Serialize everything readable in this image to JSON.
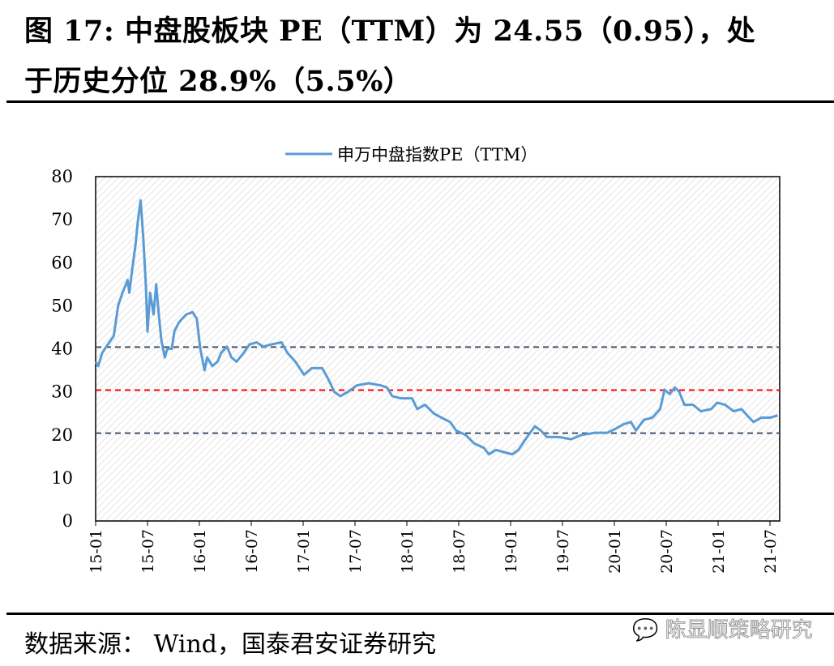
{
  "header": {
    "title_line1": "图 17:   中盘股板块 PE（TTM）为 24.55（0.95），处",
    "title_line2": "于历史分位 28.9%（5.5%）"
  },
  "footer": {
    "source": "数据来源： Wind，国泰君安证券研究",
    "watermark": "陈显顺策略研究"
  },
  "colors": {
    "line": "#5b9bd5",
    "ref_mid": "#ff0000",
    "ref_band": "#44546a"
  },
  "chart_data": {
    "type": "line",
    "title": "",
    "legend": [
      "申万中盘指数PE（TTM）"
    ],
    "legend_position": "top",
    "xlabel": "",
    "ylabel": "",
    "ylim": [
      0,
      80
    ],
    "yticks": [
      0,
      10,
      20,
      30,
      40,
      50,
      60,
      70,
      80
    ],
    "xticks": [
      "15-01",
      "15-07",
      "16-01",
      "16-07",
      "17-01",
      "17-07",
      "18-01",
      "18-07",
      "19-01",
      "19-07",
      "20-01",
      "20-07",
      "21-01",
      "21-07"
    ],
    "x_unit": "months since 2015-01",
    "reference_lines": [
      {
        "value": 40.4,
        "color": "#44546a"
      },
      {
        "value": 30.4,
        "color": "#ff0000"
      },
      {
        "value": 20.4,
        "color": "#44546a"
      }
    ],
    "series": [
      {
        "name": "申万中盘指数PE（TTM）",
        "points": [
          [
            0,
            37
          ],
          [
            0.3,
            36
          ],
          [
            0.75,
            39
          ],
          [
            1.4,
            41
          ],
          [
            2.1,
            43
          ],
          [
            2.6,
            50
          ],
          [
            3.1,
            53
          ],
          [
            3.7,
            56
          ],
          [
            3.9,
            53
          ],
          [
            4.2,
            58
          ],
          [
            4.6,
            64
          ],
          [
            4.9,
            70
          ],
          [
            5.2,
            74.5
          ],
          [
            5.5,
            66
          ],
          [
            5.8,
            55
          ],
          [
            6.0,
            44
          ],
          [
            6.3,
            53
          ],
          [
            6.7,
            48
          ],
          [
            7.0,
            55
          ],
          [
            7.3,
            48
          ],
          [
            7.6,
            42
          ],
          [
            8.0,
            38
          ],
          [
            8.3,
            40
          ],
          [
            8.8,
            40
          ],
          [
            9.1,
            44
          ],
          [
            9.6,
            46
          ],
          [
            10.0,
            47
          ],
          [
            10.5,
            48
          ],
          [
            11.2,
            48.5
          ],
          [
            11.7,
            47
          ],
          [
            12.1,
            40
          ],
          [
            12.6,
            35
          ],
          [
            12.9,
            38
          ],
          [
            13.5,
            36
          ],
          [
            14.1,
            37
          ],
          [
            14.5,
            39
          ],
          [
            15.2,
            40.5
          ],
          [
            15.7,
            38
          ],
          [
            16.3,
            37
          ],
          [
            17.1,
            39
          ],
          [
            17.8,
            41
          ],
          [
            18.6,
            41.5
          ],
          [
            19.4,
            40.5
          ],
          [
            20.3,
            41
          ],
          [
            21.5,
            41.5
          ],
          [
            22.2,
            39
          ],
          [
            23.1,
            37
          ],
          [
            24.1,
            34
          ],
          [
            25,
            35.5
          ],
          [
            26.2,
            35.5
          ],
          [
            26.9,
            33
          ],
          [
            27.6,
            30
          ],
          [
            28.3,
            29
          ],
          [
            29.2,
            30
          ],
          [
            30.2,
            31.5
          ],
          [
            31.6,
            32
          ],
          [
            33,
            31.5
          ],
          [
            33.7,
            31
          ],
          [
            34.3,
            29
          ],
          [
            35.3,
            28.5
          ],
          [
            36.6,
            28.5
          ],
          [
            37.2,
            26
          ],
          [
            38.1,
            27
          ],
          [
            39.1,
            25
          ],
          [
            40,
            24
          ],
          [
            41,
            23
          ],
          [
            41.7,
            21
          ],
          [
            42.8,
            20
          ],
          [
            43.8,
            18
          ],
          [
            44.9,
            17
          ],
          [
            45.5,
            15.5
          ],
          [
            46.3,
            16.5
          ],
          [
            47.2,
            16
          ],
          [
            48.2,
            15.5
          ],
          [
            48.9,
            16.5
          ],
          [
            49.9,
            19.5
          ],
          [
            50.8,
            22
          ],
          [
            51.5,
            21
          ],
          [
            52.2,
            19.5
          ],
          [
            53.6,
            19.5
          ],
          [
            55,
            19
          ],
          [
            56.2,
            20
          ],
          [
            57.8,
            20.5
          ],
          [
            59.2,
            20.5
          ],
          [
            60.2,
            21.5
          ],
          [
            61.1,
            22.5
          ],
          [
            61.9,
            23
          ],
          [
            62.5,
            21
          ],
          [
            63.4,
            23.5
          ],
          [
            64.4,
            24
          ],
          [
            65.3,
            26
          ],
          [
            65.8,
            30.5
          ],
          [
            66.4,
            29.5
          ],
          [
            67,
            31
          ],
          [
            67.5,
            30
          ],
          [
            68.1,
            27
          ],
          [
            69.1,
            27
          ],
          [
            70,
            25.5
          ],
          [
            71.2,
            26
          ],
          [
            71.9,
            27.5
          ],
          [
            72.8,
            27
          ],
          [
            73.8,
            25.5
          ],
          [
            74.7,
            26
          ],
          [
            75.6,
            24
          ],
          [
            76.1,
            23
          ],
          [
            77,
            24
          ],
          [
            78,
            24
          ],
          [
            78.9,
            24.5
          ]
        ]
      }
    ]
  }
}
